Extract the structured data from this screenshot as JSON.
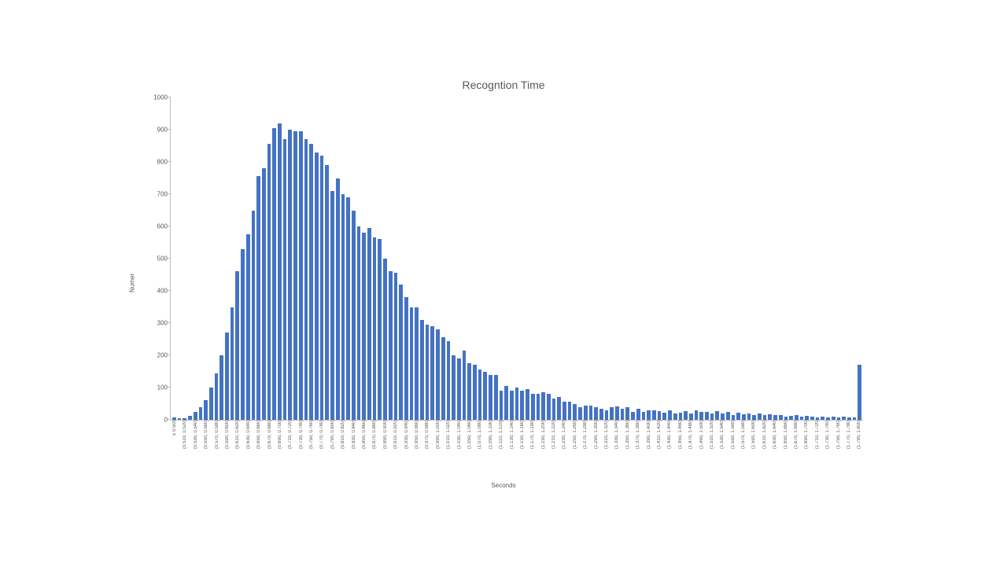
{
  "chart": {
    "type": "histogram",
    "title": "Recogntion Time",
    "ylabel": "Numer",
    "xlabel": "Seconds",
    "title_fontsize": 14,
    "axis_label_fontsize": 8,
    "tick_fontsize": 8,
    "xtick_fontsize": 6,
    "bar_color": "#4472c4",
    "axis_color": "#bfbfbf",
    "text_color": "#595959",
    "background_color": "#ffffff",
    "y_max": 1000,
    "y_tick_step": 100,
    "y_ticks": [
      0,
      100,
      200,
      300,
      400,
      500,
      600,
      700,
      800,
      900,
      1000
    ],
    "categories": [
      "≤ 0.500",
      "(0.510, 0.520]",
      "(0.530, 0.540]",
      "(0.550, 0.560]",
      "(0.570, 0.580]",
      "(0.590, 0.600]",
      "(0.610, 0.620]",
      "(0.630, 0.640]",
      "(0.650, 0.660]",
      "(0.670, 0.680]",
      "(0.690, 0.700]",
      "(0.710, 0.720]",
      "(0.730, 0.740]",
      "(0.750, 0.760]",
      "(0.770, 0.780]",
      "(0.790, 0.800]",
      "(0.810, 0.820]",
      "(0.830, 0.840]",
      "(0.850, 0.860]",
      "(0.870, 0.880]",
      "(0.890, 0.900]",
      "(0.910, 0.920]",
      "(0.930, 0.940]",
      "(0.950, 0.960]",
      "(0.970, 0.980]",
      "(0.990, 1.000]",
      "(1.010, 1.020]",
      "(1.030, 1.040]",
      "(1.050, 1.060]",
      "(1.070, 1.080]",
      "(1.090, 1.100]",
      "(1.110, 1.120]",
      "(1.130, 1.140]",
      "(1.150, 1.160]",
      "(1.170, 1.180]",
      "(1.190, 1.200]",
      "(1.210, 1.220]",
      "(1.230, 1.240]",
      "(1.250, 1.260]",
      "(1.270, 1.280]",
      "(1.290, 1.300]",
      "(1.310, 1.320]",
      "(1.330, 1.340]",
      "(1.350, 1.360]",
      "(1.370, 1.380]",
      "(1.390, 1.400]",
      "(1.410, 1.420]",
      "(1.430, 1.440]",
      "(1.450, 1.460]",
      "(1.470, 1.480]",
      "(1.490, 1.500]",
      "(1.510, 1.520]",
      "(1.530, 1.540]",
      "(1.550, 1.560]",
      "(1.570, 1.580]",
      "(1.590, 1.600]",
      "(1.610, 1.620]",
      "(1.630, 1.640]",
      "(1.650, 1.660]",
      "(1.670, 1.680]",
      "(1.690, 1.700]",
      "(1.710, 1.720]",
      "(1.730, 1.740]",
      "(1.750, 1.760]",
      "(1.770, 1.780]",
      "(1.790, 1.800]"
    ],
    "values": [
      8,
      4,
      6,
      12,
      25,
      40,
      60,
      100,
      145,
      200,
      270,
      350,
      460,
      530,
      575,
      650,
      755,
      780,
      855,
      905,
      920,
      870,
      900,
      895,
      895,
      870,
      855,
      830,
      820,
      790,
      710,
      750,
      700,
      690,
      650,
      600,
      580,
      595,
      565,
      560,
      500,
      460,
      455,
      420,
      380,
      350,
      350,
      310,
      295,
      290,
      280,
      255,
      245,
      200,
      190,
      215,
      175,
      170,
      155,
      150,
      140,
      140,
      90,
      105,
      90,
      100,
      90,
      95,
      80,
      80,
      85,
      80,
      65,
      70,
      55,
      55,
      50,
      40,
      45,
      45,
      38,
      35,
      30,
      40,
      42,
      35,
      40,
      25,
      35,
      25,
      30,
      30,
      28,
      22,
      30,
      20,
      22,
      28,
      20,
      30,
      25,
      25,
      20,
      28,
      20,
      25,
      15,
      22,
      18,
      20,
      15,
      20,
      15,
      18,
      15,
      15,
      10,
      12,
      15,
      10,
      12,
      10,
      8,
      10,
      8,
      10,
      8,
      10,
      8,
      8,
      170
    ]
  }
}
